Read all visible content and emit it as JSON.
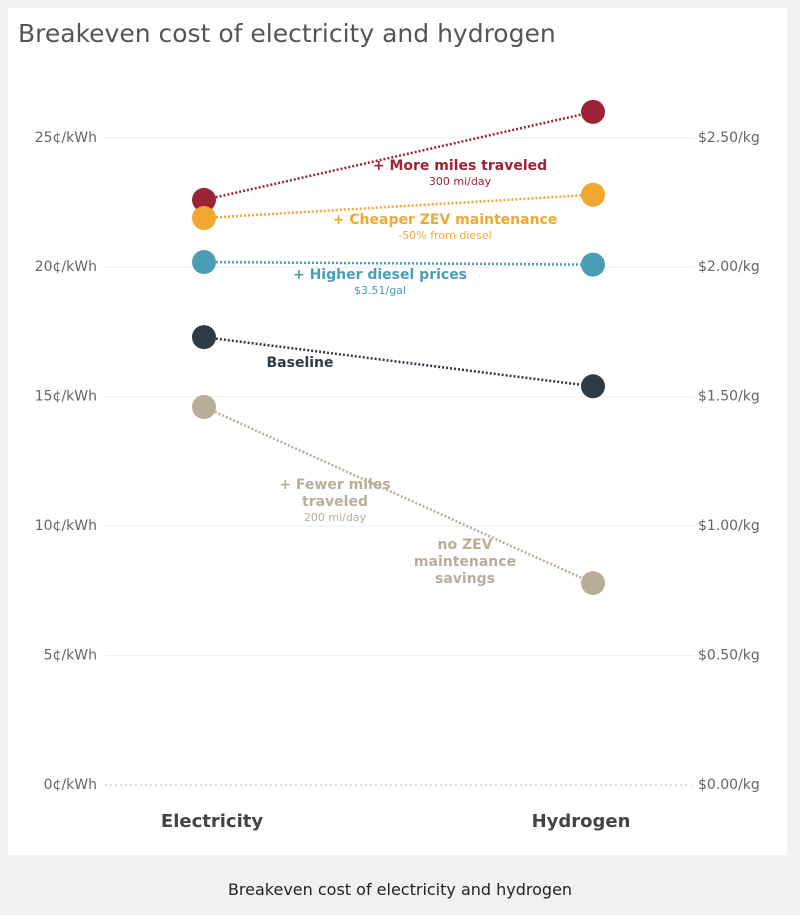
{
  "chart_data": {
    "type": "slope",
    "title": "Breakeven cost of electricity and hydrogen",
    "caption": "Breakeven cost of electricity and hydrogen",
    "x": [
      "Electricity",
      "Hydrogen"
    ],
    "point_axes": [
      "y",
      "y2"
    ],
    "ylim": [
      0,
      27
    ],
    "yticks": [
      {
        "value": 0,
        "label": "0¢/kWh"
      },
      {
        "value": 5,
        "label": "5¢/kWh"
      },
      {
        "value": 10,
        "label": "10¢/kWh"
      },
      {
        "value": 15,
        "label": "15¢/kWh"
      },
      {
        "value": 20,
        "label": "20¢/kWh"
      },
      {
        "value": 25,
        "label": "25¢/kWh"
      }
    ],
    "y2lim": [
      0,
      2.7
    ],
    "y2ticks": [
      {
        "value": 0,
        "label": "$0.00/kg"
      },
      {
        "value": 0.5,
        "label": "$0.50/kg"
      },
      {
        "value": 1,
        "label": "$1.00/kg"
      },
      {
        "value": 1.5,
        "label": "$1.50/kg"
      },
      {
        "value": 2,
        "label": "$2.00/kg"
      },
      {
        "value": 2.5,
        "label": "$2.50/kg"
      }
    ],
    "grid": true,
    "series": [
      {
        "name": "+ More miles traveled",
        "note": "300 mi/day",
        "color": "#9b2335",
        "values": [
          22.6,
          2.6
        ]
      },
      {
        "name": "+ Cheaper ZEV maintenance",
        "note": "-50% from diesel",
        "color": "#f0a830",
        "values": [
          21.9,
          2.28
        ]
      },
      {
        "name": "+ Higher diesel prices",
        "note": "$3.51/gal",
        "color": "#4a9db5",
        "values": [
          20.2,
          2.01
        ]
      },
      {
        "name": "Baseline",
        "color": "#2e3a46",
        "values": [
          17.3,
          1.54
        ]
      },
      {
        "name": "+ Fewer miles traveled",
        "note": "200 mi/day",
        "color": "#b9ad98",
        "values": [
          14.6,
          0.78
        ]
      }
    ],
    "annotations": [
      "no ZEV maintenance savings"
    ]
  }
}
